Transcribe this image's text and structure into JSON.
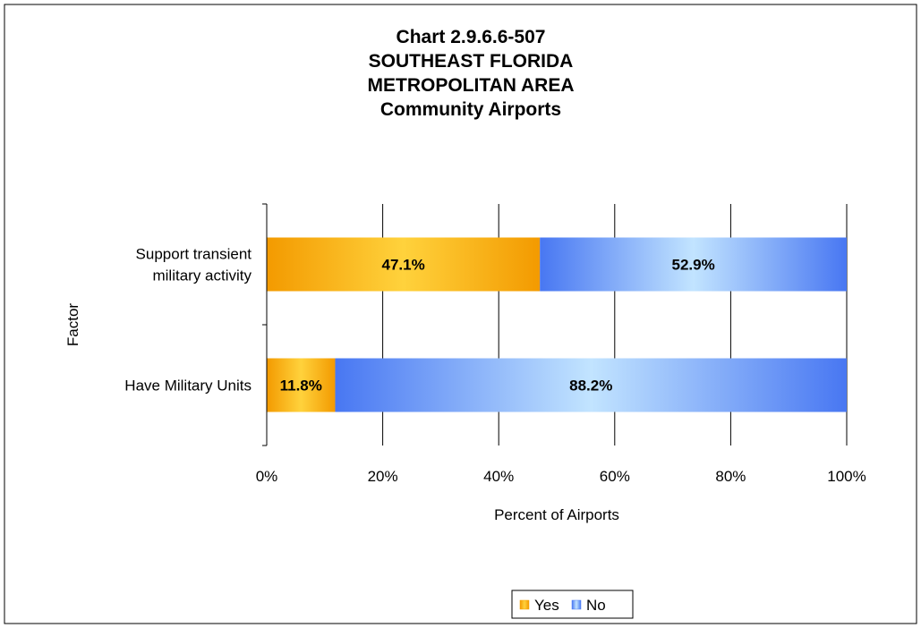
{
  "chart_data": {
    "type": "bar",
    "orientation": "horizontal",
    "stacked": "percent",
    "title_lines": [
      "Chart 2.9.6.6-507",
      "SOUTHEAST FLORIDA",
      "METROPOLITAN AREA",
      "Community Airports"
    ],
    "categories": [
      {
        "lines": [
          "Support transient",
          "military activity"
        ]
      },
      {
        "lines": [
          "Have Military Units"
        ]
      }
    ],
    "series": [
      {
        "name": "Yes",
        "color": "#f5a000",
        "values": [
          47.1,
          11.8
        ],
        "labels": [
          "47.1%",
          "11.8%"
        ]
      },
      {
        "name": "No",
        "color": "#4f7ff5",
        "values": [
          52.9,
          88.2
        ],
        "labels": [
          "52.9%",
          "88.2%"
        ]
      }
    ],
    "xlabel": "Percent of Airports",
    "ylabel": "Factor",
    "xlim": [
      0,
      100
    ],
    "xticks": [
      {
        "value": 0,
        "label": "0%"
      },
      {
        "value": 20,
        "label": "20%"
      },
      {
        "value": 40,
        "label": "40%"
      },
      {
        "value": 60,
        "label": "60%"
      },
      {
        "value": 80,
        "label": "80%"
      },
      {
        "value": 100,
        "label": "100%"
      }
    ],
    "grid": "vertical",
    "legend_position": "bottom"
  }
}
